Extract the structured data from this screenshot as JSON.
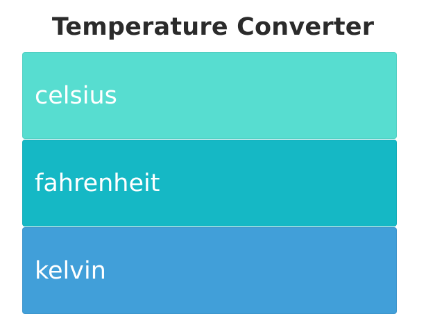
{
  "header": {
    "title": "Temperature Converter"
  },
  "fields": [
    {
      "key": "celsius",
      "placeholder": "celsius",
      "value": "",
      "color": "#57ddd0"
    },
    {
      "key": "fahrenheit",
      "placeholder": "fahrenheit",
      "value": "",
      "color": "#15b8c5"
    },
    {
      "key": "kelvin",
      "placeholder": "kelvin",
      "value": "",
      "color": "#419fd9"
    }
  ]
}
